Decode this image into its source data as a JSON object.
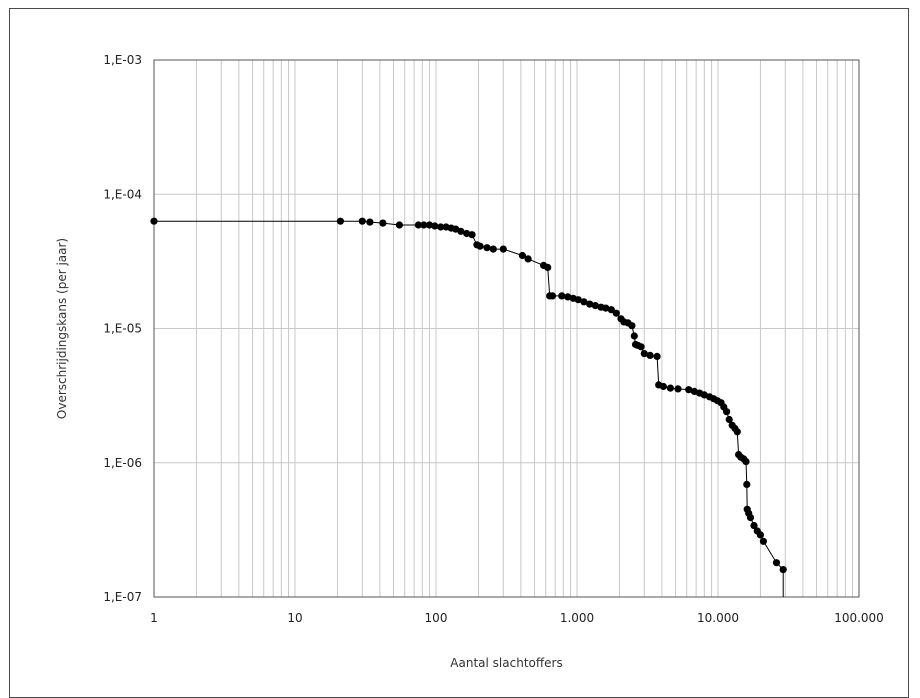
{
  "chart_data": {
    "type": "line",
    "xlabel": "Aantal slachtoffers",
    "ylabel": "Overschrijdingskans (per jaar)",
    "x_scale": "log",
    "y_scale": "log",
    "xlim": [
      1,
      100000
    ],
    "ylim": [
      1e-07,
      0.001
    ],
    "grid": true,
    "legend": "none",
    "x_ticks": [
      {
        "value": 1,
        "label": "1"
      },
      {
        "value": 10,
        "label": "10"
      },
      {
        "value": 100,
        "label": "100"
      },
      {
        "value": 1000,
        "label": "1.000"
      },
      {
        "value": 10000,
        "label": "10.000"
      },
      {
        "value": 100000,
        "label": "100.000"
      }
    ],
    "y_ticks": [
      {
        "value": 1e-07,
        "label": "1,E-07"
      },
      {
        "value": 1e-06,
        "label": "1,E-06"
      },
      {
        "value": 1e-05,
        "label": "1,E-05"
      },
      {
        "value": 0.0001,
        "label": "1,E-04"
      },
      {
        "value": 0.001,
        "label": "1,E-03"
      }
    ],
    "colors": {
      "line": "#000000",
      "marker": "#000000",
      "grid": "#c8c8c8",
      "axis": "#555555",
      "axis_title": "#333333"
    },
    "series": [
      {
        "points": [
          [
            1,
            6.3e-05
          ],
          [
            21,
            6.3e-05
          ],
          [
            30,
            6.3e-05
          ],
          [
            34,
            6.2e-05
          ],
          [
            42,
            6.1e-05
          ],
          [
            55,
            5.9e-05
          ],
          [
            75,
            5.9e-05
          ],
          [
            82,
            5.9e-05
          ],
          [
            90,
            5.9e-05
          ],
          [
            98,
            5.8e-05
          ],
          [
            108,
            5.7e-05
          ],
          [
            118,
            5.7e-05
          ],
          [
            128,
            5.6e-05
          ],
          [
            138,
            5.5e-05
          ],
          [
            150,
            5.3e-05
          ],
          [
            165,
            5.1e-05
          ],
          [
            180,
            5e-05
          ],
          [
            195,
            4.2e-05
          ],
          [
            205,
            4.1e-05
          ],
          [
            230,
            4e-05
          ],
          [
            255,
            3.9e-05
          ],
          [
            300,
            3.9e-05
          ],
          [
            410,
            3.5e-05
          ],
          [
            450,
            3.3e-05
          ],
          [
            580,
            2.95e-05
          ],
          [
            620,
            2.85e-05
          ],
          [
            640,
            1.75e-05
          ],
          [
            670,
            1.75e-05
          ],
          [
            780,
            1.75e-05
          ],
          [
            860,
            1.72e-05
          ],
          [
            940,
            1.68e-05
          ],
          [
            1020,
            1.64e-05
          ],
          [
            1120,
            1.58e-05
          ],
          [
            1230,
            1.52e-05
          ],
          [
            1350,
            1.48e-05
          ],
          [
            1480,
            1.44e-05
          ],
          [
            1600,
            1.42e-05
          ],
          [
            1750,
            1.38e-05
          ],
          [
            1900,
            1.3e-05
          ],
          [
            2050,
            1.18e-05
          ],
          [
            2150,
            1.12e-05
          ],
          [
            2300,
            1.1e-05
          ],
          [
            2450,
            1.05e-05
          ],
          [
            2550,
            8.8e-06
          ],
          [
            2600,
            7.6e-06
          ],
          [
            2700,
            7.5e-06
          ],
          [
            2850,
            7.3e-06
          ],
          [
            3000,
            6.5e-06
          ],
          [
            3300,
            6.3e-06
          ],
          [
            3700,
            6.2e-06
          ],
          [
            3800,
            3.8e-06
          ],
          [
            4100,
            3.7e-06
          ],
          [
            4600,
            3.6e-06
          ],
          [
            5200,
            3.55e-06
          ],
          [
            6200,
            3.5e-06
          ],
          [
            6800,
            3.4e-06
          ],
          [
            7400,
            3.3e-06
          ],
          [
            8000,
            3.2e-06
          ],
          [
            8700,
            3.1e-06
          ],
          [
            9300,
            3e-06
          ],
          [
            9900,
            2.9e-06
          ],
          [
            10500,
            2.8e-06
          ],
          [
            11000,
            2.6e-06
          ],
          [
            11500,
            2.4e-06
          ],
          [
            12000,
            2.1e-06
          ],
          [
            12600,
            1.9e-06
          ],
          [
            13200,
            1.8e-06
          ],
          [
            13700,
            1.7e-06
          ],
          [
            14000,
            1.15e-06
          ],
          [
            14500,
            1.1e-06
          ],
          [
            15200,
            1.07e-06
          ],
          [
            15800,
            1.02e-06
          ],
          [
            16000,
            6.9e-07
          ],
          [
            16100,
            4.5e-07
          ],
          [
            16500,
            4.2e-07
          ],
          [
            17000,
            3.9e-07
          ],
          [
            18000,
            3.4e-07
          ],
          [
            19000,
            3.1e-07
          ],
          [
            20000,
            2.9e-07
          ],
          [
            21000,
            2.6e-07
          ],
          [
            26000,
            1.8e-07
          ],
          [
            29000,
            1.6e-07
          ],
          [
            29000,
            1e-07
          ]
        ]
      }
    ]
  }
}
